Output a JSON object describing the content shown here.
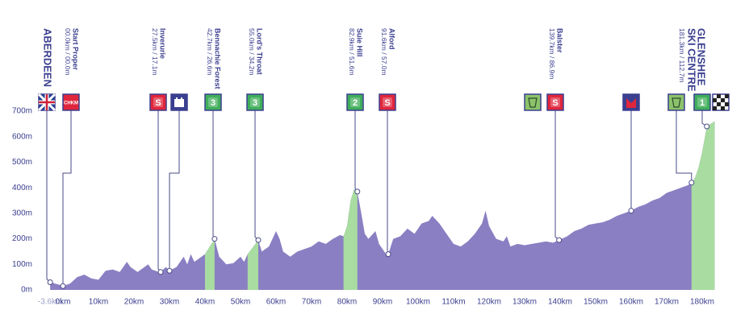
{
  "chart_data": {
    "type": "area",
    "color": "#8b7fc3",
    "climb_color": "#a8dca0",
    "x": [
      -3.6,
      -1,
      0,
      2,
      4,
      6,
      8,
      10,
      12,
      14,
      16,
      18,
      19,
      21,
      22,
      24,
      25,
      27,
      27.5,
      29,
      30,
      32,
      34,
      35,
      36,
      37,
      38,
      40,
      42.7,
      44,
      46,
      48,
      50,
      51,
      52,
      55,
      56,
      58,
      60,
      61,
      62,
      64,
      66,
      68,
      70,
      72,
      74,
      76,
      78,
      79,
      80,
      81,
      82,
      82.9,
      84,
      85,
      86,
      88,
      89,
      91,
      91.6,
      93,
      95,
      97,
      99,
      101,
      103,
      104,
      106,
      108,
      110,
      112,
      114,
      116,
      118,
      119,
      120,
      122,
      124,
      125,
      126,
      128,
      130,
      132,
      134,
      136,
      138,
      139.7,
      142,
      144,
      146,
      148,
      150,
      152,
      154,
      156,
      158,
      160,
      162,
      164,
      166,
      168,
      170,
      172,
      174,
      176,
      177,
      178,
      179,
      180,
      181.3,
      183.5
    ],
    "values": [
      30,
      20,
      15,
      25,
      50,
      60,
      45,
      40,
      75,
      80,
      70,
      110,
      90,
      70,
      80,
      100,
      80,
      70,
      70,
      90,
      75,
      90,
      130,
      100,
      140,
      110,
      120,
      140,
      200,
      130,
      100,
      105,
      130,
      110,
      140,
      195,
      150,
      170,
      230,
      200,
      150,
      130,
      150,
      160,
      170,
      190,
      180,
      200,
      215,
      210,
      250,
      350,
      395,
      385,
      300,
      220,
      200,
      230,
      180,
      140,
      140,
      200,
      210,
      240,
      220,
      260,
      270,
      290,
      260,
      220,
      180,
      170,
      190,
      220,
      260,
      310,
      250,
      200,
      190,
      210,
      170,
      180,
      175,
      180,
      185,
      190,
      185,
      195,
      210,
      230,
      240,
      255,
      260,
      265,
      275,
      290,
      300,
      310,
      325,
      335,
      350,
      360,
      380,
      390,
      400,
      410,
      420,
      440,
      480,
      540,
      640,
      660
    ],
    "climbs": [
      {
        "from": 40,
        "to": 42.7
      },
      {
        "from": 52,
        "to": 55
      },
      {
        "from": 79,
        "to": 82.9
      },
      {
        "from": 177,
        "to": 183.5
      }
    ],
    "xlim": [
      -5,
      186
    ],
    "ylim": [
      0,
      700
    ],
    "xticks": [
      {
        "value": -3.6,
        "label": "-3.6km"
      },
      {
        "value": 0,
        "label": "0km"
      },
      {
        "value": 10,
        "label": "10km"
      },
      {
        "value": 20,
        "label": "20km"
      },
      {
        "value": 30,
        "label": "30km"
      },
      {
        "value": 40,
        "label": "40km"
      },
      {
        "value": 50,
        "label": "50km"
      },
      {
        "value": 60,
        "label": "60km"
      },
      {
        "value": 70,
        "label": "70km"
      },
      {
        "value": 80,
        "label": "80km"
      },
      {
        "value": 90,
        "label": "90km"
      },
      {
        "value": 100,
        "label": "100km"
      },
      {
        "value": 110,
        "label": "110km"
      },
      {
        "value": 120,
        "label": "120km"
      },
      {
        "value": 130,
        "label": "130km"
      },
      {
        "value": 140,
        "label": "140km"
      },
      {
        "value": 150,
        "label": "150km"
      },
      {
        "value": 160,
        "label": "160km"
      },
      {
        "value": 170,
        "label": "170km"
      },
      {
        "value": 180,
        "label": "180km"
      }
    ],
    "yticks": [
      {
        "value": 0,
        "label": "0m"
      },
      {
        "value": 100,
        "label": "100m"
      },
      {
        "value": 200,
        "label": "200m"
      },
      {
        "value": 300,
        "label": "300m"
      },
      {
        "value": 400,
        "label": "400m"
      },
      {
        "value": 500,
        "label": "500m"
      },
      {
        "value": 600,
        "label": "600m"
      },
      {
        "value": 700,
        "label": "700m"
      }
    ],
    "points": [
      {
        "x": -3.6,
        "elev": 30,
        "name": "ABERDEEN"
      },
      {
        "x": 0,
        "elev": 15,
        "name": "Start Proper",
        "km": "00.0km / 00.0m"
      },
      {
        "x": 27.5,
        "elev": 70,
        "name": "Inverurie",
        "km": "27.5km / 17.1m"
      },
      {
        "x": 30,
        "elev": 75
      },
      {
        "x": 42.7,
        "elev": 200,
        "name": "Bennachie Forest",
        "km": "42.7km / 26.6m"
      },
      {
        "x": 55,
        "elev": 195,
        "name": "Lord's Throat",
        "km": "55.0km / 34.2m"
      },
      {
        "x": 82.9,
        "elev": 385,
        "name": "Suie Hill",
        "km": "82.9km / 51.6m"
      },
      {
        "x": 91.6,
        "elev": 140,
        "name": "Alford",
        "km": "91.6km / 57.0m"
      },
      {
        "x": 139.7,
        "elev": 195,
        "name": "Balster",
        "km": "139.7km / 86.9m"
      },
      {
        "x": 160,
        "elev": 310
      },
      {
        "x": 177,
        "elev": 420
      },
      {
        "x": 181.3,
        "elev": 640,
        "name": "GLENSHEE",
        "name2": "SKI CENTRE",
        "km": "181.3km / 112.7m"
      }
    ],
    "icons": [
      {
        "text": "CHKM",
        "color": "#e0263c"
      },
      {
        "text": "S",
        "color": "#e0263c"
      },
      {
        "text": "3",
        "color": "#3fae5a"
      },
      {
        "text": "3",
        "color": "#3fae5a"
      },
      {
        "text": "2",
        "color": "#3fae5a"
      },
      {
        "text": "S",
        "color": "#e0263c"
      },
      {
        "text": "S",
        "color": "#e0263c"
      },
      {
        "text": "1",
        "color": "#3fae5a"
      }
    ]
  }
}
